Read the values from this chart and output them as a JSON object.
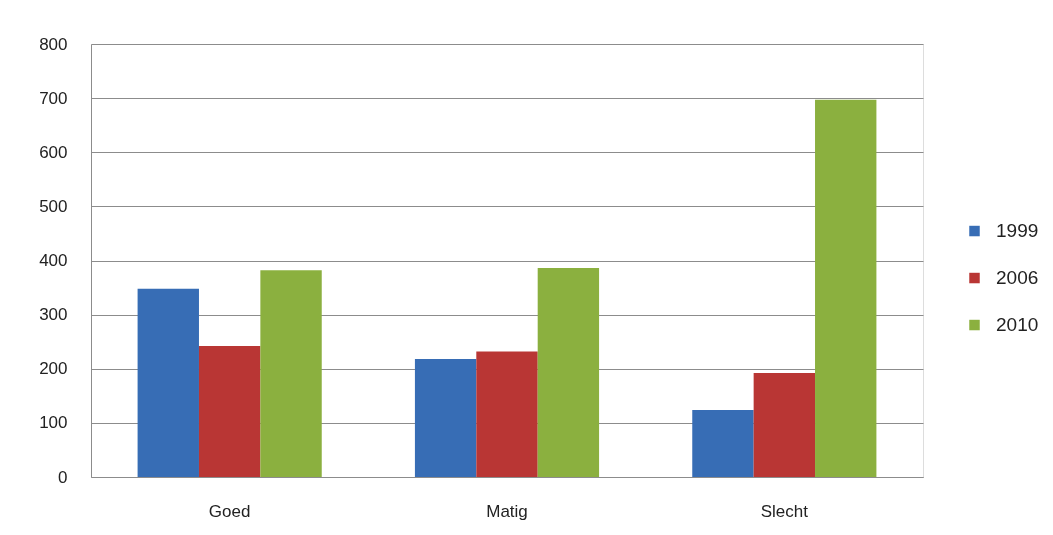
{
  "chart_data": {
    "type": "bar",
    "categories": [
      "Goed",
      "Matig",
      "Slecht"
    ],
    "series": [
      {
        "name": "1999",
        "color": "#376db5",
        "values": [
          348,
          218,
          124
        ]
      },
      {
        "name": "2006",
        "color": "#b93634",
        "values": [
          242,
          232,
          192
        ]
      },
      {
        "name": "2010",
        "color": "#8bb03f",
        "values": [
          382,
          386,
          697
        ]
      }
    ],
    "ylim": [
      0,
      800
    ],
    "yticks": [
      0,
      100,
      200,
      300,
      400,
      500,
      600,
      700,
      800
    ],
    "grid": "y",
    "legend": "right"
  }
}
